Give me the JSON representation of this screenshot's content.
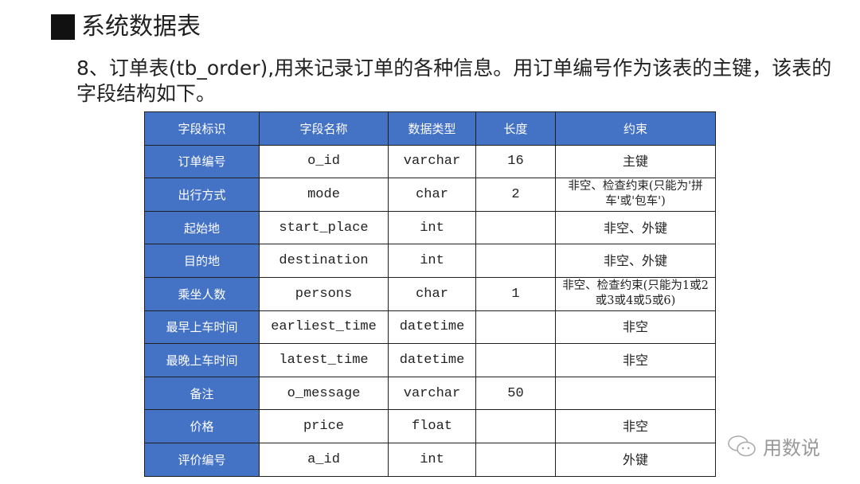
{
  "heading": "系统数据表",
  "description": "8、订单表(tb_order),用来记录订单的各种信息。用订单编号作为该表的主键，该表的字段结构如下。",
  "table": {
    "headers": [
      "字段标识",
      "字段名称",
      "数据类型",
      "长度",
      "约束"
    ],
    "rows": [
      [
        "订单编号",
        "o_id",
        "varchar",
        "16",
        "主键"
      ],
      [
        "出行方式",
        "mode",
        "char",
        "2",
        "非空、检查约束(只能为'拼车'或'包车')"
      ],
      [
        "起始地",
        "start_place",
        "int",
        "",
        "非空、外键"
      ],
      [
        "目的地",
        "destination",
        "int",
        "",
        "非空、外键"
      ],
      [
        "乘坐人数",
        "persons",
        "char",
        "1",
        "非空、检查约束(只能为1或2或3或4或5或6)"
      ],
      [
        "最早上车时间",
        "earliest_time",
        "datetime",
        "",
        "非空"
      ],
      [
        "最晚上车时间",
        "latest_time",
        "datetime",
        "",
        "非空"
      ],
      [
        "备注",
        "o_message",
        "varchar",
        "50",
        ""
      ],
      [
        "价格",
        "price",
        "float",
        "",
        "非空"
      ],
      [
        "评价编号",
        "a_id",
        "int",
        "",
        "外键"
      ]
    ]
  },
  "watermark": "用数说",
  "colors": {
    "header_blue": "#4472c4"
  }
}
